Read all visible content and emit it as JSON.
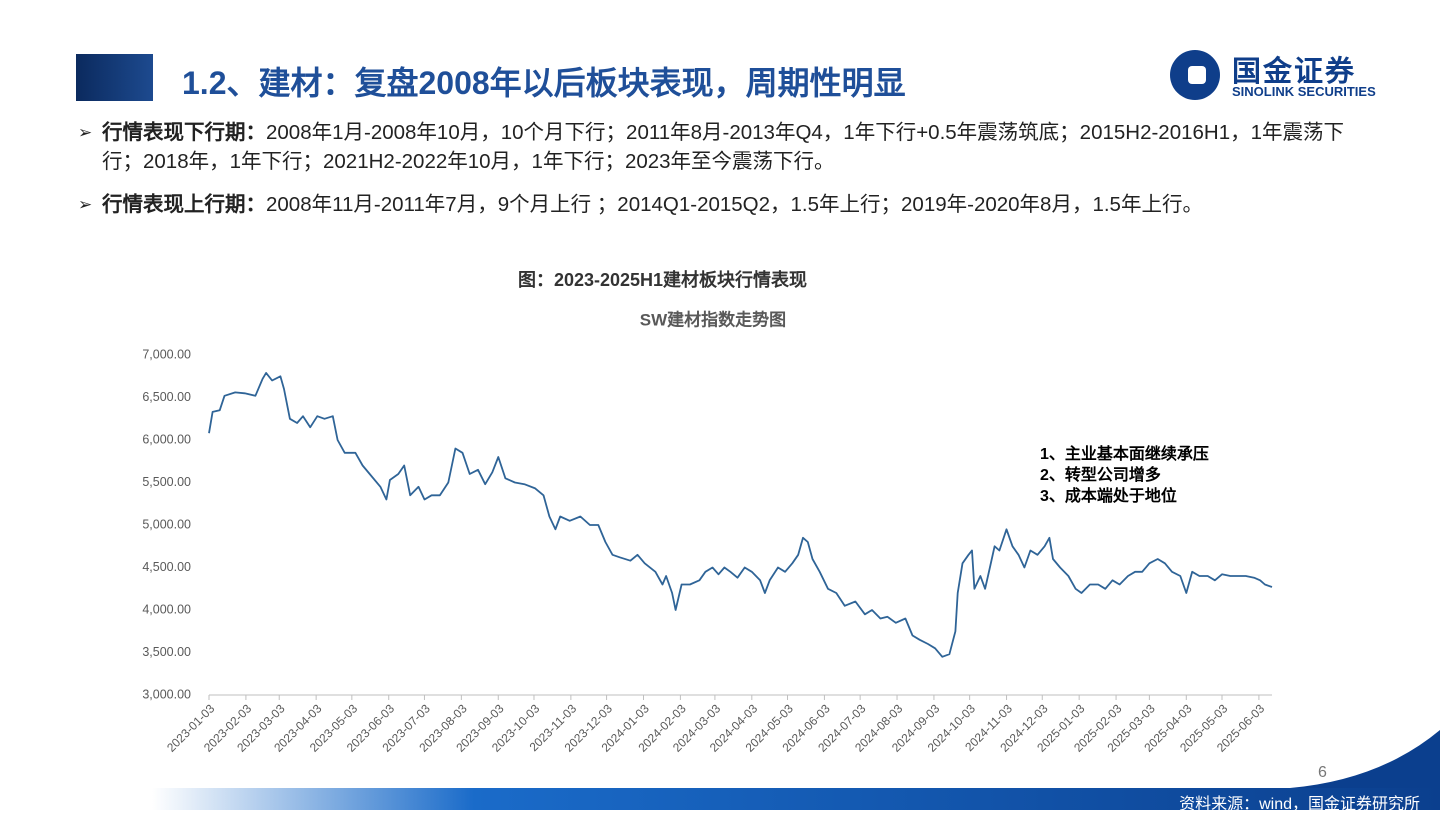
{
  "header": {
    "title": "1.2、建材：复盘2008年以后板块表现，周期性明显",
    "logo_cn": "国金证券",
    "logo_en": "SINOLINK SECURITIES"
  },
  "bullets": [
    {
      "label": "行情表现下行期：",
      "text": "2008年1月-2008年10月，10个月下行；2011年8月-2013年Q4，1年下行+0.5年震荡筑底；2015H2-2016H1，1年震荡下行；2018年，1年下行；2021H2-2022年10月，1年下行；2023年至今震荡下行。"
    },
    {
      "label": "行情表现上行期：",
      "text": "2008年11月-2011年7月，9个月上行 ；2014Q1-2015Q2，1.5年上行；2019年-2020年8月，1.5年上行。"
    }
  ],
  "figure_caption": "图：2023-2025H1建材板块行情表现",
  "chart_data": {
    "type": "line",
    "title": "SW建材指数走势图",
    "color": "#2f6497",
    "grid": false,
    "x": [
      "2023-01-03",
      "2023-01-06",
      "2023-01-12",
      "2023-01-16",
      "2023-01-25",
      "2023-02-02",
      "2023-02-11",
      "2023-02-17",
      "2023-02-20",
      "2023-02-25",
      "2023-03-04",
      "2023-03-07",
      "2023-03-12",
      "2023-03-18",
      "2023-03-23",
      "2023-03-29",
      "2023-04-04",
      "2023-04-10",
      "2023-04-17",
      "2023-04-21",
      "2023-04-27",
      "2023-05-06",
      "2023-05-12",
      "2023-05-18",
      "2023-05-27",
      "2023-06-01",
      "2023-06-04",
      "2023-06-11",
      "2023-06-16",
      "2023-06-21",
      "2023-06-28",
      "2023-07-03",
      "2023-07-09",
      "2023-07-16",
      "2023-07-23",
      "2023-07-29",
      "2023-08-04",
      "2023-08-10",
      "2023-08-17",
      "2023-08-23",
      "2023-08-29",
      "2023-09-03",
      "2023-09-09",
      "2023-09-17",
      "2023-09-25",
      "2023-10-04",
      "2023-10-11",
      "2023-10-16",
      "2023-10-21",
      "2023-10-25",
      "2023-11-02",
      "2023-11-11",
      "2023-11-19",
      "2023-11-26",
      "2023-12-02",
      "2023-12-08",
      "2023-12-14",
      "2023-12-23",
      "2023-12-29",
      "2024-01-04",
      "2024-01-13",
      "2024-01-19",
      "2024-01-22",
      "2024-01-27",
      "2024-01-30",
      "2024-02-04",
      "2024-02-11",
      "2024-02-19",
      "2024-02-24",
      "2024-03-01",
      "2024-03-06",
      "2024-03-11",
      "2024-03-16",
      "2024-03-22",
      "2024-03-28",
      "2024-04-03",
      "2024-04-10",
      "2024-04-14",
      "2024-04-18",
      "2024-04-25",
      "2024-05-01",
      "2024-05-07",
      "2024-05-12",
      "2024-05-16",
      "2024-05-20",
      "2024-05-24",
      "2024-05-30",
      "2024-06-06",
      "2024-06-13",
      "2024-06-20",
      "2024-06-29",
      "2024-07-07",
      "2024-07-13",
      "2024-07-20",
      "2024-07-26",
      "2024-08-02",
      "2024-08-10",
      "2024-08-16",
      "2024-08-22",
      "2024-08-29",
      "2024-09-04",
      "2024-09-10",
      "2024-09-16",
      "2024-09-21",
      "2024-09-23",
      "2024-09-27",
      "2024-10-02",
      "2024-10-05",
      "2024-10-07",
      "2024-10-12",
      "2024-10-16",
      "2024-10-20",
      "2024-10-24",
      "2024-10-28",
      "2024-11-03",
      "2024-11-08",
      "2024-11-13",
      "2024-11-18",
      "2024-11-23",
      "2024-11-29",
      "2024-12-05",
      "2024-12-09",
      "2024-12-12",
      "2024-12-18",
      "2024-12-25",
      "2024-12-31",
      "2025-01-05",
      "2025-01-12",
      "2025-01-19",
      "2025-01-25",
      "2025-01-31",
      "2025-02-06",
      "2025-02-13",
      "2025-02-19",
      "2025-02-25",
      "2025-03-03",
      "2025-03-10",
      "2025-03-16",
      "2025-03-22",
      "2025-03-29",
      "2025-04-03",
      "2025-04-08",
      "2025-04-14",
      "2025-04-21",
      "2025-04-27",
      "2025-05-03",
      "2025-05-10",
      "2025-05-16",
      "2025-05-23",
      "2025-05-30",
      "2025-06-04",
      "2025-06-08",
      "2025-06-14"
    ],
    "values": [
      6080,
      6330,
      6350,
      6520,
      6560,
      6550,
      6520,
      6720,
      6790,
      6700,
      6750,
      6600,
      6250,
      6200,
      6280,
      6150,
      6280,
      6250,
      6280,
      6000,
      5850,
      5850,
      5700,
      5600,
      5450,
      5300,
      5530,
      5600,
      5700,
      5350,
      5450,
      5300,
      5350,
      5350,
      5500,
      5900,
      5850,
      5600,
      5650,
      5480,
      5620,
      5800,
      5550,
      5500,
      5480,
      5430,
      5350,
      5100,
      4950,
      5100,
      5050,
      5100,
      5000,
      5000,
      4800,
      4650,
      4620,
      4580,
      4650,
      4550,
      4450,
      4300,
      4400,
      4200,
      4000,
      4300,
      4300,
      4350,
      4450,
      4500,
      4420,
      4500,
      4450,
      4380,
      4500,
      4450,
      4350,
      4200,
      4350,
      4500,
      4450,
      4550,
      4650,
      4850,
      4800,
      4600,
      4450,
      4250,
      4200,
      4050,
      4100,
      3950,
      4000,
      3900,
      3920,
      3850,
      3900,
      3700,
      3650,
      3600,
      3550,
      3450,
      3480,
      3750,
      4200,
      4550,
      4650,
      4700,
      4250,
      4400,
      4250,
      4500,
      4750,
      4700,
      4950,
      4750,
      4650,
      4500,
      4700,
      4650,
      4750,
      4850,
      4600,
      4500,
      4400,
      4250,
      4200,
      4300,
      4300,
      4250,
      4350,
      4300,
      4400,
      4450,
      4450,
      4550,
      4600,
      4550,
      4450,
      4400,
      4200,
      4450,
      4400,
      4400,
      4350,
      4420,
      4400,
      4400,
      4400,
      4380,
      4350,
      4300,
      4270
    ],
    "xlim": [
      "2023-01-03",
      "2025-06-14"
    ],
    "xticks": [
      "2023-01-03",
      "2023-02-03",
      "2023-03-03",
      "2023-04-03",
      "2023-05-03",
      "2023-06-03",
      "2023-07-03",
      "2023-08-03",
      "2023-09-03",
      "2023-10-03",
      "2023-11-03",
      "2023-12-03",
      "2024-01-03",
      "2024-02-03",
      "2024-03-03",
      "2024-04-03",
      "2024-05-03",
      "2024-06-03",
      "2024-07-03",
      "2024-08-03",
      "2024-09-03",
      "2024-10-03",
      "2024-11-03",
      "2024-12-03",
      "2025-01-03",
      "2025-02-03",
      "2025-03-03",
      "2025-04-03",
      "2025-05-03",
      "2025-06-03"
    ],
    "ylim": [
      3000,
      7000
    ],
    "yticks": [
      {
        "value": 3000,
        "label": "3,000.00"
      },
      {
        "value": 3500,
        "label": "3,500.00"
      },
      {
        "value": 4000,
        "label": "4,000.00"
      },
      {
        "value": 4500,
        "label": "4,500.00"
      },
      {
        "value": 5000,
        "label": "5,000.00"
      },
      {
        "value": 5500,
        "label": "5,500.00"
      },
      {
        "value": 6000,
        "label": "6,000.00"
      },
      {
        "value": 6500,
        "label": "6,500.00"
      },
      {
        "value": 7000,
        "label": "7,000.00"
      }
    ],
    "annotations": [
      "1、主业基本面继续承压",
      "2、转型公司增多",
      "3、成本端处于地位"
    ]
  },
  "source": "资料来源：wind，国金证券研究所",
  "page_number": "6"
}
